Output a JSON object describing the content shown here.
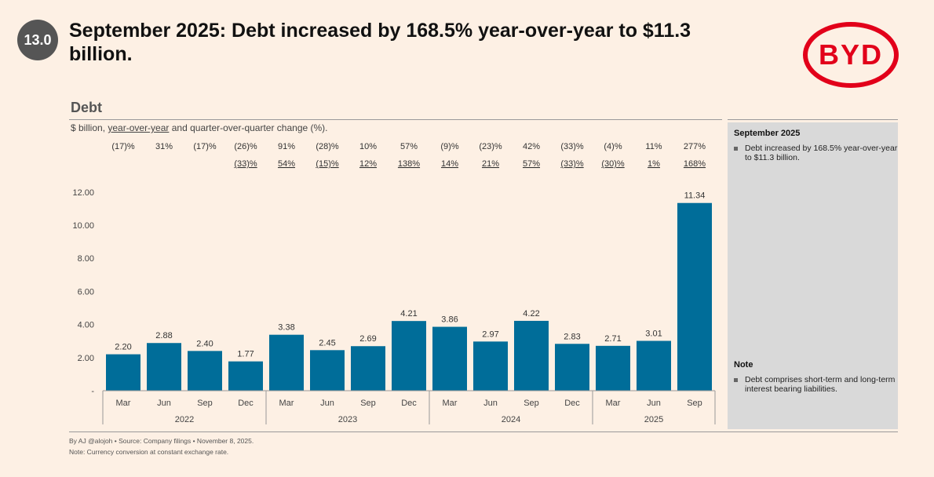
{
  "badge": "13.0",
  "title": "September 2025: Debt increased by 168.5% year-over-year to $11.3 billion.",
  "logo_text": "BYD",
  "section": "Debt",
  "subtitle": {
    "prefix": "$ billion, ",
    "yoy": "year-over-year",
    "suffix": " and quarter-over-quarter change (%)."
  },
  "sidebar": {
    "heading1": "September 2025",
    "bullet1": "Debt increased by 168.5% year-over-year to $11.3 billion.",
    "heading2": "Note",
    "bullet2": "Debt comprises short-term and long-term interest bearing liabilities."
  },
  "footer": {
    "line1": "By AJ @alojoh • Source: Company filings • November 8, 2025.",
    "line2": "Note: Currency conversion at constant exchange rate."
  },
  "chart_data": {
    "type": "bar",
    "categories": [
      "Mar",
      "Jun",
      "Sep",
      "Dec",
      "Mar",
      "Jun",
      "Sep",
      "Dec",
      "Mar",
      "Jun",
      "Sep",
      "Dec",
      "Mar",
      "Jun",
      "Sep"
    ],
    "years": [
      {
        "label": "2022",
        "span": 4
      },
      {
        "label": "2023",
        "span": 4
      },
      {
        "label": "2024",
        "span": 4
      },
      {
        "label": "2025",
        "span": 3
      }
    ],
    "values": [
      2.2,
      2.88,
      2.4,
      1.77,
      3.38,
      2.45,
      2.69,
      4.21,
      3.86,
      2.97,
      4.22,
      2.83,
      2.71,
      3.01,
      11.34
    ],
    "qoq": [
      "(17)%",
      "31%",
      "(17)%",
      "(26)%",
      "91%",
      "(28)%",
      "10%",
      "57%",
      "(9)%",
      "(23)%",
      "42%",
      "(33)%",
      "(4)%",
      "11%",
      "277%"
    ],
    "yoy": [
      "",
      "",
      "",
      "(33)%",
      "54%",
      "(15)%",
      "12%",
      "138%",
      "14%",
      "21%",
      "57%",
      "(33)%",
      "(30)%",
      "1%",
      "168%"
    ],
    "yticks": [
      "-",
      "2.00",
      "4.00",
      "6.00",
      "8.00",
      "10.00",
      "12.00"
    ],
    "ylim": [
      0,
      12
    ],
    "bar_color": "#006d99"
  }
}
